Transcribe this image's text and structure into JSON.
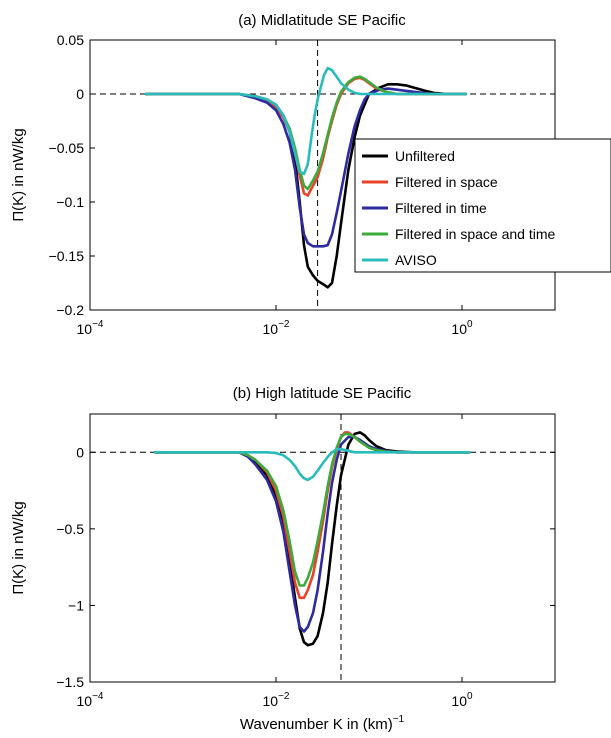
{
  "chart_data": [
    {
      "type": "line",
      "title": "(a) Midlatitude SE Pacific",
      "xlabel": "",
      "ylabel": "Π(K) in nW/kg",
      "xscale": "log",
      "xlim": [
        0.0001,
        10
      ],
      "ylim": [
        -0.2,
        0.05
      ],
      "xticks": [
        {
          "base": "10",
          "exp": "−4",
          "v": 0.0001
        },
        {
          "base": "10",
          "exp": "−2",
          "v": 0.01
        },
        {
          "base": "10",
          "exp": "0",
          "v": 1
        }
      ],
      "yticks": [
        {
          "label": "0.05",
          "v": 0.05
        },
        {
          "label": "0",
          "v": 0
        },
        {
          "label": "−0.05",
          "v": -0.05
        },
        {
          "label": "−0.1",
          "v": -0.1
        },
        {
          "label": "−0.15",
          "v": -0.15
        },
        {
          "label": "−0.2",
          "v": -0.2
        }
      ],
      "ref_hline": 0,
      "ref_vline": 0.028,
      "legend": {
        "placement": "center-right"
      },
      "series": [
        {
          "name": "Unfiltered",
          "color": "#000000",
          "x": [
            0.0004,
            0.004,
            0.006,
            0.008,
            0.01,
            0.012,
            0.014,
            0.016,
            0.018,
            0.02,
            0.022,
            0.025,
            0.028,
            0.032,
            0.036,
            0.04,
            0.045,
            0.05,
            0.06,
            0.07,
            0.08,
            0.1,
            0.13,
            0.16,
            0.2,
            0.25,
            0.3,
            0.4,
            0.5,
            0.7,
            1.1
          ],
          "y": [
            0,
            0,
            -0.003,
            -0.006,
            -0.01,
            -0.02,
            -0.035,
            -0.06,
            -0.1,
            -0.14,
            -0.16,
            -0.168,
            -0.173,
            -0.176,
            -0.179,
            -0.175,
            -0.15,
            -0.12,
            -0.07,
            -0.04,
            -0.02,
            0,
            0.006,
            0.009,
            0.009,
            0.008,
            0.006,
            0.003,
            0.001,
            0,
            0
          ]
        },
        {
          "name": "Filtered in space",
          "color": "#e8432a",
          "x": [
            0.0004,
            0.004,
            0.006,
            0.008,
            0.01,
            0.012,
            0.014,
            0.016,
            0.018,
            0.02,
            0.022,
            0.025,
            0.028,
            0.032,
            0.036,
            0.04,
            0.045,
            0.05,
            0.06,
            0.07,
            0.08,
            0.09,
            0.1,
            0.12,
            0.15,
            0.2,
            0.3,
            0.5,
            1.1
          ],
          "y": [
            0,
            0,
            -0.002,
            -0.006,
            -0.012,
            -0.022,
            -0.035,
            -0.055,
            -0.075,
            -0.092,
            -0.094,
            -0.085,
            -0.077,
            -0.06,
            -0.04,
            -0.025,
            -0.01,
            0,
            0.01,
            0.014,
            0.015,
            0.013,
            0.01,
            0.005,
            0.002,
            0,
            0,
            0,
            0
          ]
        },
        {
          "name": "Filtered in time",
          "color": "#2e2aa0",
          "x": [
            0.0004,
            0.004,
            0.006,
            0.008,
            0.01,
            0.012,
            0.014,
            0.016,
            0.018,
            0.02,
            0.022,
            0.025,
            0.028,
            0.032,
            0.036,
            0.04,
            0.045,
            0.05,
            0.06,
            0.07,
            0.08,
            0.09,
            0.1,
            0.13,
            0.16,
            0.2,
            0.3,
            0.5,
            1.1
          ],
          "y": [
            0,
            0,
            -0.004,
            -0.008,
            -0.015,
            -0.028,
            -0.045,
            -0.07,
            -0.105,
            -0.13,
            -0.138,
            -0.141,
            -0.141,
            -0.141,
            -0.14,
            -0.13,
            -0.11,
            -0.09,
            -0.055,
            -0.03,
            -0.015,
            -0.005,
            0,
            0.004,
            0.005,
            0.004,
            0.002,
            0,
            0
          ]
        },
        {
          "name": "Filtered in space and time",
          "color": "#3cab3c",
          "x": [
            0.0004,
            0.004,
            0.006,
            0.008,
            0.01,
            0.012,
            0.014,
            0.016,
            0.018,
            0.02,
            0.022,
            0.025,
            0.028,
            0.032,
            0.036,
            0.04,
            0.045,
            0.05,
            0.06,
            0.07,
            0.08,
            0.09,
            0.1,
            0.12,
            0.15,
            0.2,
            0.3,
            0.5,
            1.1
          ],
          "y": [
            0,
            0,
            -0.002,
            -0.005,
            -0.01,
            -0.02,
            -0.032,
            -0.05,
            -0.07,
            -0.085,
            -0.088,
            -0.08,
            -0.072,
            -0.055,
            -0.038,
            -0.022,
            -0.008,
            0.002,
            0.011,
            0.015,
            0.016,
            0.014,
            0.011,
            0.006,
            0.002,
            0,
            0,
            0,
            0
          ]
        },
        {
          "name": "AVISO",
          "color": "#2abcbc",
          "x": [
            0.0004,
            0.004,
            0.006,
            0.008,
            0.01,
            0.012,
            0.014,
            0.016,
            0.018,
            0.02,
            0.022,
            0.024,
            0.026,
            0.028,
            0.03,
            0.033,
            0.036,
            0.04,
            0.045,
            0.05,
            0.06,
            0.07,
            0.08,
            0.1,
            0.12,
            0.15,
            0.2,
            0.3,
            0.5,
            1.1
          ],
          "y": [
            0,
            0,
            -0.002,
            -0.005,
            -0.01,
            -0.02,
            -0.035,
            -0.055,
            -0.072,
            -0.074,
            -0.065,
            -0.04,
            -0.02,
            -0.005,
            0.005,
            0.018,
            0.024,
            0.022,
            0.016,
            0.01,
            0.004,
            0.001,
            0,
            0,
            0,
            0,
            0,
            0,
            0,
            0
          ]
        }
      ]
    },
    {
      "type": "line",
      "title": "(b) High latitude SE Pacific",
      "xlabel": "Wavenumber K in (km)",
      "xlabel_sup": "−1",
      "ylabel": "Π(K) in nW/kg",
      "xscale": "log",
      "xlim": [
        0.0001,
        10
      ],
      "ylim": [
        -1.5,
        0.25
      ],
      "xticks": [
        {
          "base": "10",
          "exp": "−4",
          "v": 0.0001
        },
        {
          "base": "10",
          "exp": "−2",
          "v": 0.01
        },
        {
          "base": "10",
          "exp": "0",
          "v": 1
        }
      ],
      "yticks": [
        {
          "label": "0",
          "v": 0
        },
        {
          "label": "−0.5",
          "v": -0.5
        },
        {
          "label": "−1",
          "v": -1
        },
        {
          "label": "−1.5",
          "v": -1.5
        }
      ],
      "ref_hline": 0,
      "ref_vline": 0.05,
      "series": [
        {
          "name": "Unfiltered",
          "color": "#000000",
          "x": [
            0.0005,
            0.004,
            0.005,
            0.006,
            0.008,
            0.01,
            0.012,
            0.014,
            0.016,
            0.018,
            0.02,
            0.022,
            0.025,
            0.028,
            0.032,
            0.036,
            0.04,
            0.045,
            0.05,
            0.06,
            0.07,
            0.08,
            0.09,
            0.1,
            0.12,
            0.15,
            0.2,
            0.3,
            0.5,
            1.2
          ],
          "y": [
            0,
            0,
            -0.02,
            -0.06,
            -0.15,
            -0.28,
            -0.45,
            -0.7,
            -0.95,
            -1.15,
            -1.24,
            -1.26,
            -1.25,
            -1.2,
            -1.05,
            -0.85,
            -0.6,
            -0.35,
            -0.15,
            0.05,
            0.12,
            0.13,
            0.11,
            0.08,
            0.04,
            0.015,
            0.005,
            0,
            0,
            0
          ]
        },
        {
          "name": "Filtered in space",
          "color": "#e8432a",
          "x": [
            0.0005,
            0.004,
            0.005,
            0.006,
            0.008,
            0.01,
            0.012,
            0.014,
            0.016,
            0.018,
            0.02,
            0.022,
            0.025,
            0.028,
            0.032,
            0.036,
            0.04,
            0.045,
            0.05,
            0.055,
            0.06,
            0.07,
            0.08,
            0.1,
            0.12,
            0.15,
            0.2,
            0.3,
            0.5,
            1.2
          ],
          "y": [
            0,
            0,
            -0.02,
            -0.05,
            -0.13,
            -0.25,
            -0.42,
            -0.65,
            -0.85,
            -0.95,
            -0.95,
            -0.9,
            -0.8,
            -0.65,
            -0.45,
            -0.25,
            -0.1,
            0.02,
            0.1,
            0.13,
            0.13,
            0.1,
            0.07,
            0.03,
            0.015,
            0.005,
            0,
            0,
            0,
            0
          ]
        },
        {
          "name": "Filtered in time",
          "color": "#2e2aa0",
          "x": [
            0.0005,
            0.004,
            0.005,
            0.006,
            0.008,
            0.01,
            0.012,
            0.014,
            0.016,
            0.018,
            0.02,
            0.022,
            0.025,
            0.028,
            0.032,
            0.036,
            0.04,
            0.045,
            0.05,
            0.06,
            0.07,
            0.08,
            0.1,
            0.12,
            0.15,
            0.2,
            0.3,
            0.5,
            1.2
          ],
          "y": [
            0,
            0,
            -0.03,
            -0.08,
            -0.18,
            -0.32,
            -0.52,
            -0.78,
            -1.0,
            -1.14,
            -1.17,
            -1.14,
            -1.05,
            -0.9,
            -0.65,
            -0.4,
            -0.2,
            -0.05,
            0.05,
            0.1,
            0.1,
            0.08,
            0.04,
            0.02,
            0.01,
            0,
            0,
            0,
            0
          ]
        },
        {
          "name": "Filtered in space and time",
          "color": "#3cab3c",
          "x": [
            0.0005,
            0.004,
            0.005,
            0.006,
            0.008,
            0.01,
            0.012,
            0.014,
            0.016,
            0.018,
            0.02,
            0.022,
            0.025,
            0.028,
            0.032,
            0.036,
            0.04,
            0.045,
            0.05,
            0.055,
            0.06,
            0.07,
            0.08,
            0.1,
            0.12,
            0.15,
            0.2,
            0.3,
            0.5,
            1.2
          ],
          "y": [
            0,
            0,
            -0.02,
            -0.05,
            -0.12,
            -0.22,
            -0.38,
            -0.58,
            -0.78,
            -0.87,
            -0.87,
            -0.82,
            -0.72,
            -0.58,
            -0.4,
            -0.22,
            -0.08,
            0.03,
            0.1,
            0.12,
            0.12,
            0.1,
            0.07,
            0.03,
            0.015,
            0.005,
            0,
            0,
            0,
            0
          ]
        },
        {
          "name": "AVISO",
          "color": "#2abcbc",
          "x": [
            0.0005,
            0.005,
            0.008,
            0.01,
            0.012,
            0.014,
            0.016,
            0.018,
            0.02,
            0.022,
            0.025,
            0.028,
            0.032,
            0.036,
            0.04,
            0.045,
            0.05,
            0.06,
            0.07,
            0.1,
            0.2,
            1.2
          ],
          "y": [
            0,
            0,
            0,
            -0.005,
            -0.02,
            -0.05,
            -0.09,
            -0.14,
            -0.17,
            -0.18,
            -0.16,
            -0.12,
            -0.07,
            -0.03,
            0,
            0.02,
            0.02,
            0.01,
            0,
            0,
            0,
            0
          ]
        }
      ]
    }
  ]
}
